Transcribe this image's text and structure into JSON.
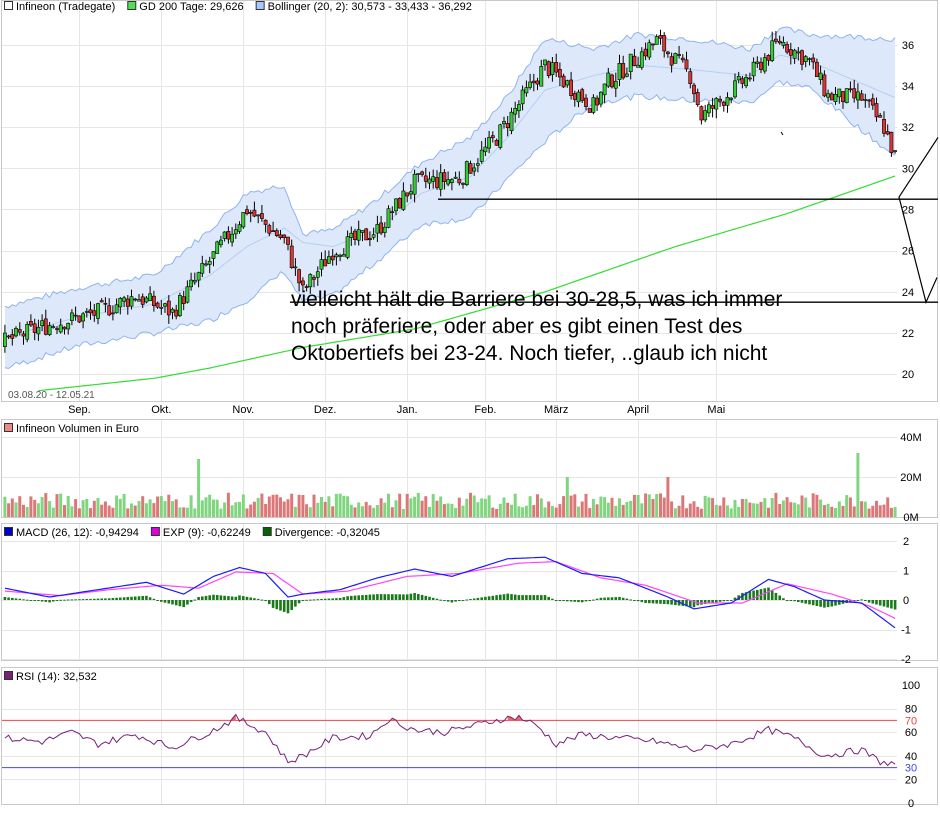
{
  "chart_data": [
    {
      "type": "candlestick",
      "legend": [
        {
          "label": "Infineon (Tradegate)",
          "color": "#ffffff"
        },
        {
          "label": "GD 200 Tage: 29,626",
          "color": "#55dd55"
        },
        {
          "label": "Bollinger (20, 2): 30,573 - 33,433 - 36,292",
          "color": "#a8c8ff"
        }
      ],
      "date_range": "03.08.20 - 12.05.21",
      "x_labels": [
        "Sep.",
        "Okt.",
        "Nov.",
        "Dez.",
        "Jan.",
        "Feb.",
        "März",
        "April",
        "Mai"
      ],
      "y_ticks": [
        "20",
        "22",
        "24",
        "26",
        "28",
        "30",
        "32",
        "34",
        "36"
      ],
      "ylim": [
        18.7,
        37.3
      ],
      "close_waypoints": [
        [
          0,
          21.6
        ],
        [
          10,
          22.3
        ],
        [
          25,
          23.0
        ],
        [
          35,
          23.8
        ],
        [
          45,
          23.0
        ],
        [
          55,
          25.5
        ],
        [
          65,
          28.0
        ],
        [
          75,
          26.5
        ],
        [
          80,
          24.0
        ],
        [
          88,
          26.0
        ],
        [
          100,
          27.0
        ],
        [
          110,
          29.3
        ],
        [
          122,
          29.5
        ],
        [
          132,
          31.5
        ],
        [
          145,
          35.0
        ],
        [
          158,
          33.0
        ],
        [
          162,
          34.2
        ],
        [
          175,
          36.2
        ],
        [
          184,
          34.5
        ],
        [
          187,
          32.5
        ],
        [
          200,
          34.5
        ],
        [
          208,
          36.2
        ],
        [
          216,
          35.2
        ],
        [
          221,
          33.5
        ],
        [
          230,
          33.4
        ],
        [
          236,
          32.0
        ],
        [
          239,
          30.57
        ]
      ],
      "bollinger_upper_waypoints": [
        [
          0,
          23.3
        ],
        [
          20,
          24.2
        ],
        [
          40,
          24.8
        ],
        [
          55,
          27.0
        ],
        [
          65,
          28.8
        ],
        [
          75,
          29.2
        ],
        [
          80,
          26.8
        ],
        [
          88,
          27.0
        ],
        [
          100,
          28.5
        ],
        [
          112,
          30.3
        ],
        [
          125,
          31.5
        ],
        [
          135,
          33.5
        ],
        [
          145,
          36.3
        ],
        [
          158,
          35.8
        ],
        [
          170,
          36.5
        ],
        [
          184,
          36.3
        ],
        [
          200,
          35.8
        ],
        [
          208,
          36.8
        ],
        [
          216,
          36.5
        ],
        [
          239,
          36.292
        ]
      ],
      "bollinger_middle_waypoints": [
        [
          0,
          21.8
        ],
        [
          20,
          22.8
        ],
        [
          40,
          23.4
        ],
        [
          55,
          24.8
        ],
        [
          65,
          26.2
        ],
        [
          75,
          27.1
        ],
        [
          80,
          26.4
        ],
        [
          88,
          26.2
        ],
        [
          100,
          27.0
        ],
        [
          112,
          28.8
        ],
        [
          125,
          29.6
        ],
        [
          135,
          31.5
        ],
        [
          145,
          33.8
        ],
        [
          158,
          34.5
        ],
        [
          170,
          35.0
        ],
        [
          184,
          34.8
        ],
        [
          200,
          34.5
        ],
        [
          208,
          35.5
        ],
        [
          216,
          35.2
        ],
        [
          239,
          33.433
        ]
      ],
      "bollinger_lower_waypoints": [
        [
          0,
          20.3
        ],
        [
          20,
          21.4
        ],
        [
          40,
          22.0
        ],
        [
          55,
          22.6
        ],
        [
          65,
          23.6
        ],
        [
          75,
          25.0
        ],
        [
          80,
          23.5
        ],
        [
          88,
          23.8
        ],
        [
          100,
          25.5
        ],
        [
          112,
          27.3
        ],
        [
          125,
          27.6
        ],
        [
          135,
          29.5
        ],
        [
          145,
          31.3
        ],
        [
          158,
          33.2
        ],
        [
          170,
          33.5
        ],
        [
          184,
          33.3
        ],
        [
          200,
          33.2
        ],
        [
          208,
          34.2
        ],
        [
          216,
          33.9
        ],
        [
          239,
          30.573
        ]
      ],
      "gd200_waypoints": [
        [
          9,
          19.2
        ],
        [
          40,
          19.8
        ],
        [
          55,
          20.3
        ],
        [
          80,
          21.3
        ],
        [
          110,
          22.2
        ],
        [
          145,
          24.0
        ],
        [
          180,
          26.2
        ],
        [
          210,
          27.8
        ],
        [
          239,
          29.626
        ]
      ],
      "support_lines": [
        28.5,
        23.5
      ],
      "annotation_lines": [
        "vielleicht hält die Barriere  bei 30-28,5, was ich immer",
        "noch präferiere, oder aber es gibt einen Test des",
        "Oktobertiefs bei 23-24. Noch tiefer, ..glaub ich nicht"
      ],
      "drawn_path_prices": [
        31.5,
        28.6,
        23.5,
        24.7
      ]
    },
    {
      "type": "bar",
      "legend": [
        {
          "label": "Infineon Volumen in Euro",
          "color": "#ee8888"
        }
      ],
      "y_ticks": [
        "0M",
        "20M",
        "40M"
      ],
      "ylim": [
        0,
        40
      ],
      "typical_level_millions": 9,
      "spikes_millions": [
        [
          52,
          29
        ],
        [
          229,
          32
        ],
        [
          151,
          20
        ],
        [
          178,
          20
        ]
      ],
      "colors": {
        "up": "#7fd67f",
        "down": "#dd7777"
      }
    },
    {
      "type": "line",
      "legend": [
        {
          "label": "MACD (26, 12): -0,94294",
          "color": "#0000cc"
        },
        {
          "label": "EXP (9): -0,62249",
          "color": "#dd00dd"
        },
        {
          "label": "Divergence: -0,32045",
          "color": "#006600"
        }
      ],
      "y_ticks": [
        "-2",
        "-1",
        "0",
        "1",
        "2"
      ],
      "ylim": [
        -2,
        2
      ],
      "macd_waypoints": [
        [
          0,
          0.4
        ],
        [
          12,
          0.1
        ],
        [
          25,
          0.35
        ],
        [
          38,
          0.6
        ],
        [
          48,
          0.2
        ],
        [
          56,
          0.8
        ],
        [
          63,
          1.1
        ],
        [
          70,
          0.9
        ],
        [
          76,
          0.1
        ],
        [
          80,
          0.2
        ],
        [
          90,
          0.35
        ],
        [
          100,
          0.75
        ],
        [
          110,
          1.05
        ],
        [
          120,
          0.8
        ],
        [
          135,
          1.4
        ],
        [
          145,
          1.45
        ],
        [
          155,
          0.9
        ],
        [
          165,
          0.75
        ],
        [
          178,
          0.1
        ],
        [
          185,
          -0.3
        ],
        [
          195,
          -0.1
        ],
        [
          205,
          0.7
        ],
        [
          212,
          0.45
        ],
        [
          220,
          0.0
        ],
        [
          230,
          -0.1
        ],
        [
          239,
          -0.94294
        ]
      ],
      "exp_waypoints": [
        [
          0,
          0.3
        ],
        [
          15,
          0.15
        ],
        [
          28,
          0.35
        ],
        [
          42,
          0.5
        ],
        [
          52,
          0.4
        ],
        [
          62,
          0.95
        ],
        [
          72,
          0.9
        ],
        [
          80,
          0.2
        ],
        [
          92,
          0.3
        ],
        [
          108,
          0.8
        ],
        [
          122,
          0.9
        ],
        [
          138,
          1.25
        ],
        [
          148,
          1.3
        ],
        [
          160,
          0.75
        ],
        [
          172,
          0.5
        ],
        [
          186,
          -0.1
        ],
        [
          198,
          -0.1
        ],
        [
          210,
          0.55
        ],
        [
          222,
          0.2
        ],
        [
          232,
          -0.2
        ],
        [
          239,
          -0.62249
        ]
      ]
    },
    {
      "type": "line",
      "legend": [
        {
          "label": "RSI (14): 32,532",
          "color": "#772277"
        }
      ],
      "y_ticks": [
        "0",
        "20",
        "30",
        "40",
        "60",
        "70",
        "80",
        "100"
      ],
      "ylim": [
        0,
        100
      ],
      "reference_levels": [
        70,
        30
      ],
      "rsi_waypoints": [
        [
          0,
          55
        ],
        [
          10,
          52
        ],
        [
          18,
          60
        ],
        [
          25,
          50
        ],
        [
          35,
          58
        ],
        [
          45,
          47
        ],
        [
          55,
          60
        ],
        [
          62,
          72
        ],
        [
          70,
          60
        ],
        [
          76,
          35
        ],
        [
          80,
          40
        ],
        [
          88,
          55
        ],
        [
          98,
          57
        ],
        [
          103,
          71
        ],
        [
          110,
          62
        ],
        [
          118,
          60
        ],
        [
          125,
          65
        ],
        [
          133,
          71
        ],
        [
          138,
          73
        ],
        [
          143,
          65
        ],
        [
          148,
          50
        ],
        [
          155,
          58
        ],
        [
          165,
          55
        ],
        [
          175,
          52
        ],
        [
          185,
          45
        ],
        [
          195,
          50
        ],
        [
          205,
          62
        ],
        [
          212,
          55
        ],
        [
          220,
          40
        ],
        [
          230,
          45
        ],
        [
          235,
          35
        ],
        [
          239,
          32.532
        ]
      ]
    }
  ]
}
